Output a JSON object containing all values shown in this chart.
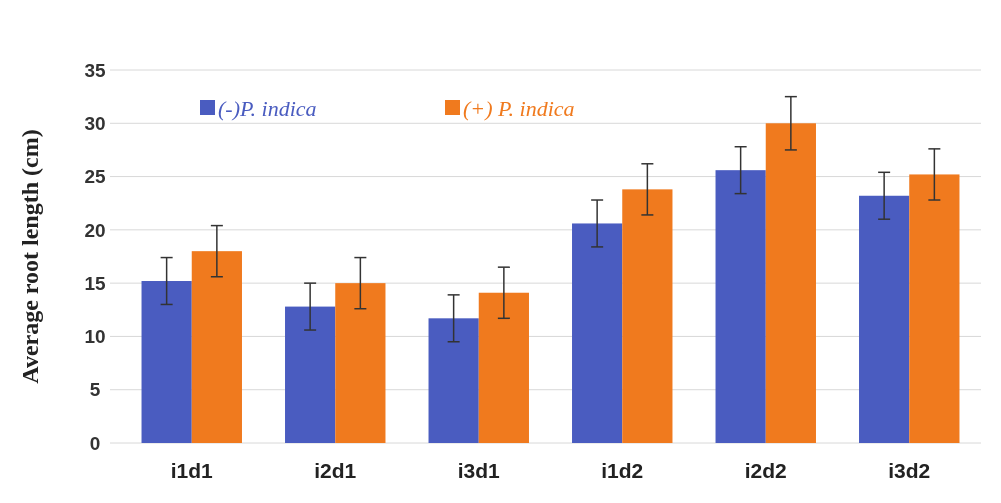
{
  "chart_data": {
    "type": "bar",
    "ylabel": "Average root length (cm)",
    "categories": [
      "i1d1",
      "i2d1",
      "i3d1",
      "i1d2",
      "i2d2",
      "i3d2"
    ],
    "series": [
      {
        "name": "(-)P. indica",
        "color": "#4a5cc0",
        "values": [
          15.2,
          12.8,
          11.7,
          20.6,
          25.6,
          23.2
        ],
        "errors": [
          2.2,
          2.2,
          2.2,
          2.2,
          2.2,
          2.2
        ]
      },
      {
        "name": "(+) P. indica",
        "color": "#f07a1e",
        "values": [
          18,
          15,
          14.1,
          23.8,
          30,
          25.2
        ],
        "errors": [
          2.4,
          2.4,
          2.4,
          2.4,
          2.5,
          2.4
        ]
      }
    ],
    "ylim": [
      0,
      35
    ],
    "yticks": [
      0,
      5,
      10,
      15,
      20,
      25,
      30,
      35
    ],
    "grid": "y",
    "legend": "top left"
  }
}
